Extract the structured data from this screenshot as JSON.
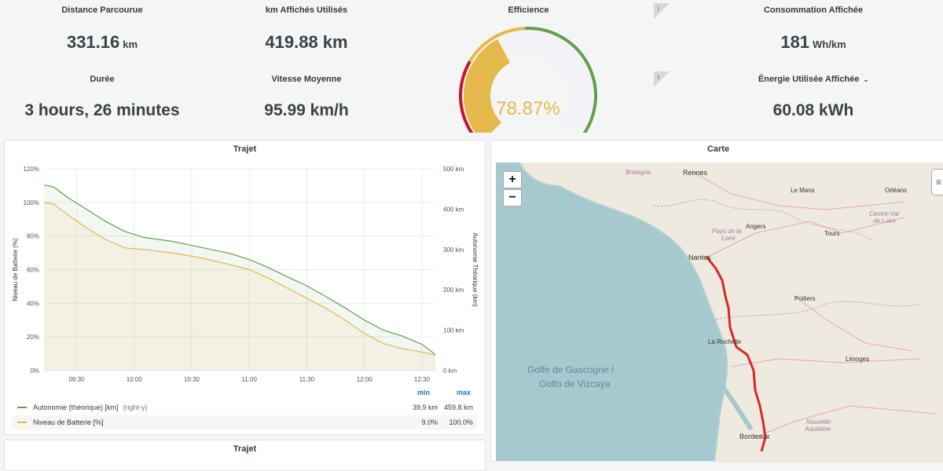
{
  "stats": {
    "distance": {
      "label": "Distance Parcourue",
      "value": "331.16",
      "unit": "km"
    },
    "km_used": {
      "label": "km Affichés Utilisés",
      "value": "419.88 km"
    },
    "efficiency": {
      "label": "Efficience",
      "value": "78.87%",
      "gauge_fraction": 0.7887
    },
    "consumption": {
      "label": "Consommation Affichée",
      "value": "181",
      "unit": "Wh/km"
    },
    "duration": {
      "label": "Durée",
      "value": "3 hours, 26 minutes"
    },
    "avg_speed": {
      "label": "Vitesse Moyenne",
      "value": "95.99 km/h"
    },
    "energy": {
      "label": "Énergie Utilisée Affichée",
      "value": "60.08 kWh"
    }
  },
  "colors": {
    "green": "#629e51",
    "yellow": "#e5b84b",
    "red": "#c4162a",
    "route": "#d62a2a",
    "sea": "#a6c9cf"
  },
  "trip_panel": {
    "title": "Trajet",
    "legend_min_header": "min",
    "legend_max_header": "max",
    "legend": [
      {
        "name": "Autonomie (théorique) [km]",
        "suffix": "(right-y)",
        "min": "39.9 km",
        "max": "459.8 km",
        "color": "#629e51"
      },
      {
        "name": "Niveau de Batterie [%]",
        "suffix": "",
        "min": "9.0%",
        "max": "100.0%",
        "color": "#e5b84b"
      }
    ]
  },
  "chart_data": {
    "type": "line",
    "ylabel": "Niveau de Batterie (%)",
    "y2label": "Autonomie Théorique (km)",
    "x_ticks": [
      "09:30",
      "10:00",
      "10:30",
      "11:00",
      "11:30",
      "12:00",
      "12:30"
    ],
    "y_ticks": [
      "0%",
      "20%",
      "40%",
      "60%",
      "80%",
      "100%",
      "120%"
    ],
    "y2_ticks": [
      "0 km",
      "100 km",
      "200 km",
      "300 km",
      "400 km",
      "500 km"
    ],
    "ylim": [
      0,
      120
    ],
    "y2lim": [
      0,
      500
    ],
    "x_minutes_range": [
      "09:13",
      "12:37"
    ],
    "series": [
      {
        "name": "Autonomie (théorique) [km]",
        "axis": "right",
        "x": [
          "09:13",
          "09:18",
          "09:25",
          "09:35",
          "09:45",
          "09:55",
          "10:05",
          "10:20",
          "10:35",
          "10:50",
          "11:00",
          "11:10",
          "11:20",
          "11:30",
          "11:40",
          "11:50",
          "12:00",
          "12:10",
          "12:20",
          "12:30",
          "12:37"
        ],
        "values": [
          459.8,
          455,
          430,
          400,
          370,
          345,
          330,
          320,
          305,
          290,
          275,
          255,
          232,
          210,
          183,
          155,
          125,
          100,
          85,
          65,
          39.9
        ]
      },
      {
        "name": "Niveau de Batterie [%]",
        "axis": "left",
        "x": [
          "09:13",
          "09:18",
          "09:25",
          "09:35",
          "09:45",
          "09:55",
          "10:05",
          "10:20",
          "10:35",
          "10:50",
          "11:00",
          "11:10",
          "11:20",
          "11:30",
          "11:40",
          "11:50",
          "12:00",
          "12:10",
          "12:20",
          "12:30",
          "12:37"
        ],
        "values": [
          100,
          99,
          93,
          85,
          78,
          73,
          72,
          70,
          67,
          63,
          60,
          55,
          49,
          43,
          37,
          30,
          22,
          16,
          13,
          11,
          9.0
        ]
      }
    ]
  },
  "map_panel": {
    "title": "Carte",
    "zoom_in": "+",
    "zoom_out": "−",
    "labels": {
      "bretagne": "Bretagne",
      "rennes": "Rennes",
      "le_mans": "Le Mans",
      "orleans": "Orléans",
      "pays_loire_1": "Pays de la",
      "pays_loire_2": "Loire",
      "angers": "Angers",
      "tours": "Tours",
      "centre_1": "Centre-Val",
      "centre_2": "de Loire",
      "nantes": "Nantes",
      "poitiers": "Poitiers",
      "la_rochelle": "La Rochelle",
      "limoges": "Limoges",
      "golfe_1": "Golfe de Gascogne /",
      "golfe_2": "Golfo de Vizcaya",
      "nouvelle_1": "Nouvelle-",
      "nouvelle_2": "Aquitaine",
      "bordeaux": "Bordeaux"
    }
  },
  "bottom_panel": {
    "title": "Trajet"
  }
}
